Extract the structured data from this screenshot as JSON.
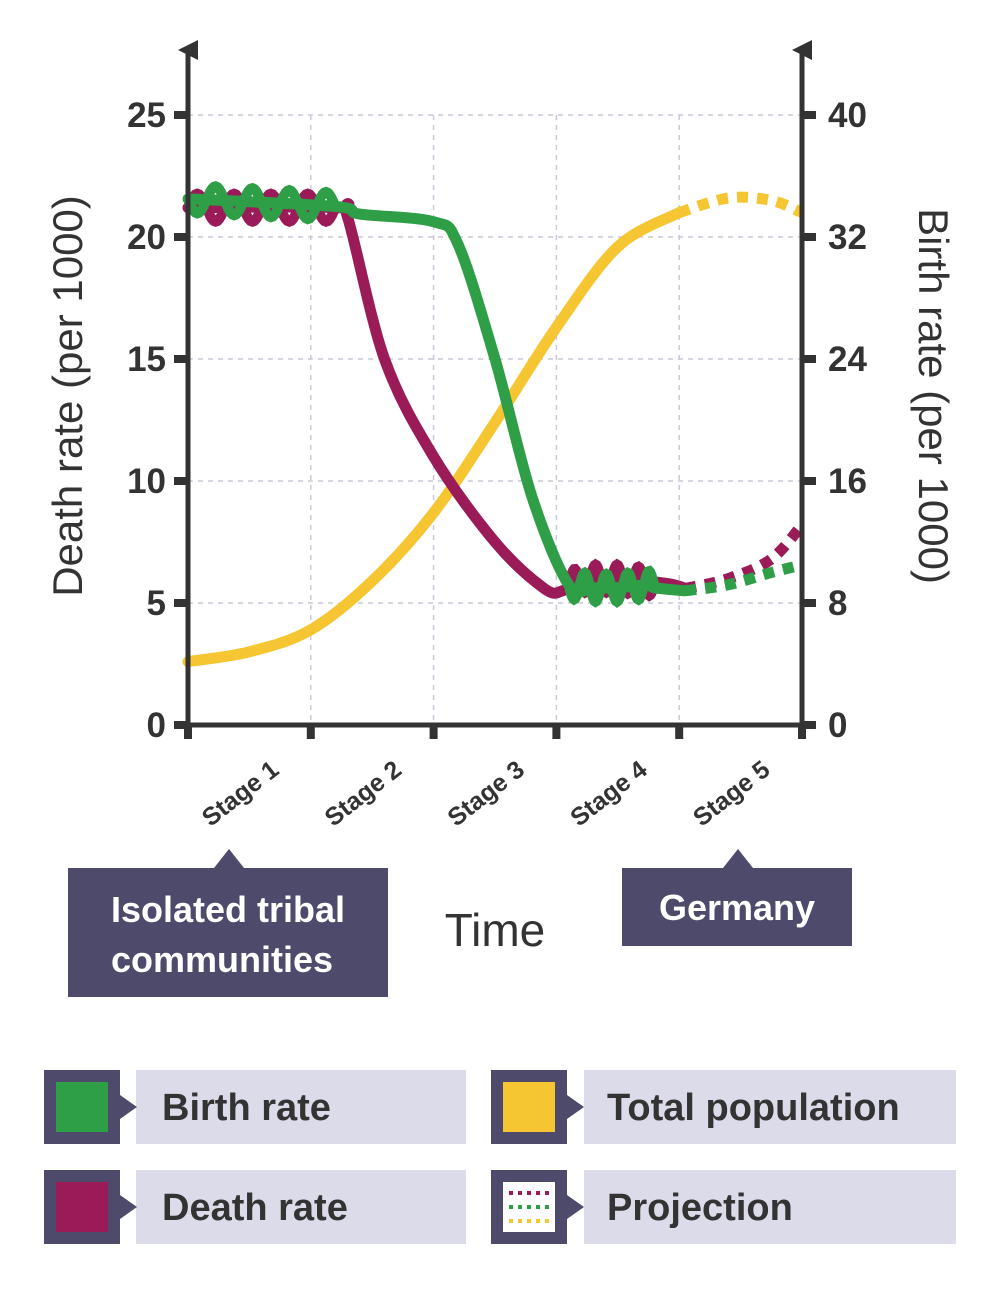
{
  "chart_data": {
    "type": "line",
    "x_axis": {
      "title": "Time",
      "categories": [
        "Stage 1",
        "Stage 2",
        "Stage 3",
        "Stage 4",
        "Stage 5"
      ]
    },
    "y_axis_left": {
      "title": "Death rate (per 1000)",
      "ticks": [
        0,
        5,
        10,
        15,
        20,
        25
      ],
      "range": [
        0,
        25
      ]
    },
    "y_axis_right": {
      "title": "Birth rate (per 1000)",
      "ticks": [
        0,
        8,
        16,
        24,
        32,
        40
      ],
      "range": [
        0,
        40
      ]
    },
    "grid": true,
    "series": [
      {
        "name": "Birth rate",
        "axis": "right",
        "color": "#2e9e47",
        "points": [
          [
            0.0,
            34.5
          ],
          [
            1.2,
            34.0
          ],
          [
            1.4,
            33.5
          ],
          [
            2.0,
            33.0
          ],
          [
            2.2,
            31.5
          ],
          [
            2.5,
            24.0
          ],
          [
            2.8,
            15.0
          ],
          [
            3.1,
            9.2
          ],
          [
            3.3,
            9.0
          ],
          [
            3.5,
            9.0
          ],
          [
            3.75,
            9.2
          ],
          [
            3.8,
            9.0
          ],
          [
            4.05,
            8.8
          ]
        ],
        "oscillating": [
          [
            0.0,
            1.2
          ],
          [
            3.1,
            3.8
          ]
        ],
        "projection": [
          [
            4.05,
            8.8
          ],
          [
            4.4,
            9.2
          ],
          [
            4.75,
            10.0
          ],
          [
            5.0,
            10.5
          ]
        ]
      },
      {
        "name": "Death rate",
        "axis": "left",
        "color": "#9b1b59",
        "points": [
          [
            0.0,
            21.2
          ],
          [
            1.2,
            21.2
          ],
          [
            1.3,
            20.8
          ],
          [
            1.6,
            15.0
          ],
          [
            2.0,
            11.0
          ],
          [
            2.5,
            7.5
          ],
          [
            2.9,
            5.6
          ],
          [
            3.05,
            5.5
          ],
          [
            3.2,
            6.0
          ],
          [
            3.5,
            6.0
          ],
          [
            3.9,
            5.8
          ],
          [
            4.05,
            5.6
          ]
        ],
        "oscillating": [
          [
            0.0,
            1.2
          ],
          [
            3.1,
            3.8
          ]
        ],
        "projection": [
          [
            4.05,
            5.6
          ],
          [
            4.4,
            6.0
          ],
          [
            4.75,
            6.8
          ],
          [
            5.0,
            8.2
          ]
        ]
      },
      {
        "name": "Total population",
        "axis": "left",
        "color": "#f5c532",
        "points": [
          [
            0.0,
            2.6
          ],
          [
            0.5,
            3.0
          ],
          [
            1.0,
            3.9
          ],
          [
            1.5,
            5.9
          ],
          [
            2.0,
            8.7
          ],
          [
            2.5,
            12.4
          ],
          [
            3.0,
            16.3
          ],
          [
            3.5,
            19.6
          ],
          [
            4.0,
            21.0
          ]
        ],
        "projection": [
          [
            4.0,
            21.0
          ],
          [
            4.4,
            21.6
          ],
          [
            4.75,
            21.5
          ],
          [
            5.0,
            21.0
          ]
        ]
      }
    ],
    "callouts": [
      {
        "label": "Isolated tribal communities",
        "stage": "Stage 1"
      },
      {
        "label": "Germany",
        "stage": "Stage 5"
      }
    ],
    "legend": [
      {
        "label": "Birth rate",
        "color": "#2e9e47",
        "swatch": "solid"
      },
      {
        "label": "Total population",
        "color": "#f5c532",
        "swatch": "solid"
      },
      {
        "label": "Death rate",
        "color": "#9b1b59",
        "swatch": "solid"
      },
      {
        "label": "Projection",
        "swatch": "dotted"
      }
    ]
  },
  "callout_lines": {
    "tribal": [
      "Isolated tribal",
      "communities"
    ],
    "germany": [
      "Germany"
    ]
  },
  "colors": {
    "callout_bg": "#4d4a6b",
    "legend_bg": "#dcdbe9",
    "axis": "#333333",
    "grid": "#c9c9d9"
  }
}
